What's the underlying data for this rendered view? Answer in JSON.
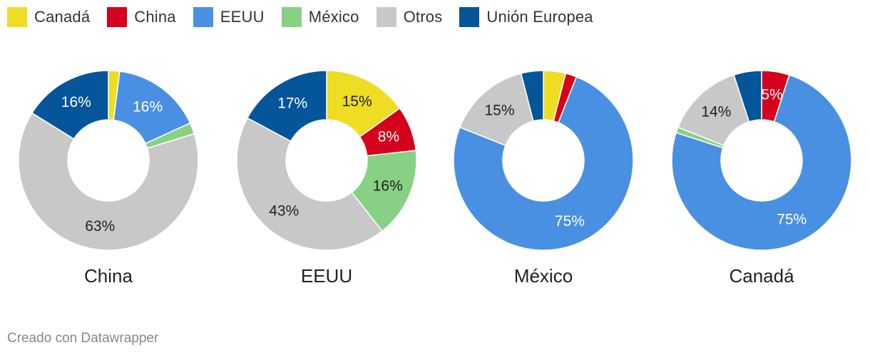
{
  "legend": [
    {
      "name": "Canadá",
      "color": "#eedd22"
    },
    {
      "name": "China",
      "color": "#d4001e"
    },
    {
      "name": "EEUU",
      "color": "#4a90e2"
    },
    {
      "name": "México",
      "color": "#88d084"
    },
    {
      "name": "Otros",
      "color": "#c8c8c8"
    },
    {
      "name": "Unión Europea",
      "color": "#04559a"
    }
  ],
  "footer": {
    "credit": "Creado con Datawrapper"
  },
  "chart_data": [
    {
      "type": "pie",
      "title": "China",
      "slices": [
        {
          "name": "Canadá",
          "value": 2,
          "label": ""
        },
        {
          "name": "EEUU",
          "value": 16,
          "label": "16%"
        },
        {
          "name": "México",
          "value": 2,
          "label": ""
        },
        {
          "name": "Otros",
          "value": 63,
          "label": "63%"
        },
        {
          "name": "Unión Europea",
          "value": 16,
          "label": "16%"
        }
      ]
    },
    {
      "type": "pie",
      "title": "EEUU",
      "slices": [
        {
          "name": "Canadá",
          "value": 15,
          "label": "15%"
        },
        {
          "name": "China",
          "value": 8,
          "label": "8%"
        },
        {
          "name": "México",
          "value": 16,
          "label": "16%"
        },
        {
          "name": "Otros",
          "value": 43,
          "label": "43%"
        },
        {
          "name": "Unión Europea",
          "value": 17,
          "label": "17%"
        }
      ]
    },
    {
      "type": "pie",
      "title": "México",
      "slices": [
        {
          "name": "Canadá",
          "value": 4,
          "label": ""
        },
        {
          "name": "China",
          "value": 2,
          "label": ""
        },
        {
          "name": "EEUU",
          "value": 75,
          "label": "75%"
        },
        {
          "name": "Otros",
          "value": 15,
          "label": "15%"
        },
        {
          "name": "Unión Europea",
          "value": 4,
          "label": ""
        }
      ]
    },
    {
      "type": "pie",
      "title": "Canadá",
      "slices": [
        {
          "name": "China",
          "value": 5,
          "label": "5%"
        },
        {
          "name": "EEUU",
          "value": 75,
          "label": "75%"
        },
        {
          "name": "México",
          "value": 1,
          "label": ""
        },
        {
          "name": "Otros",
          "value": 14,
          "label": "14%"
        },
        {
          "name": "Unión Europea",
          "value": 5,
          "label": ""
        }
      ]
    }
  ]
}
